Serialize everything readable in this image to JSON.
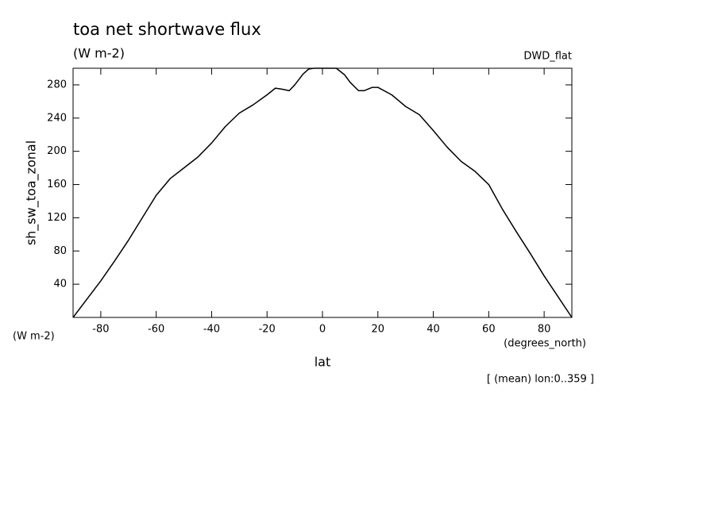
{
  "chart_data": {
    "type": "line",
    "title": "toa net shortwave flux",
    "subtitle": "(W m-2)",
    "dataset_label": "DWD_flat",
    "y_label": "sh_sw_toa_zonal",
    "y_units": "(W m-2)",
    "x_units": "(degrees_north)",
    "x_label": "lat",
    "annotation": "[ (mean) lon:0..359 ]",
    "color": "#000000",
    "x": [
      -90,
      -85,
      -80,
      -75,
      -70,
      -65,
      -60,
      -55,
      -50,
      -45,
      -40,
      -35,
      -30,
      -25,
      -20,
      -17,
      -15,
      -12,
      -10,
      -7,
      -5,
      -3,
      0,
      3,
      5,
      8,
      10,
      13,
      15,
      18,
      20,
      25,
      30,
      35,
      40,
      45,
      50,
      55,
      60,
      65,
      70,
      75,
      80,
      85,
      90
    ],
    "values": [
      0,
      22,
      44,
      68,
      93,
      120,
      147,
      167,
      180,
      193,
      210,
      230,
      246,
      256,
      268,
      276,
      275,
      273,
      280,
      293,
      299,
      300,
      300,
      300,
      300,
      292,
      283,
      273,
      273,
      277,
      277,
      268,
      254,
      244,
      225,
      205,
      188,
      176,
      160,
      130,
      103,
      77,
      50,
      25,
      0
    ],
    "xlim": [
      -90,
      90
    ],
    "xticks": [
      -80,
      -60,
      -40,
      -20,
      0,
      20,
      40,
      60,
      80
    ],
    "ylim": [
      0,
      300
    ],
    "yticks": [
      40,
      80,
      120,
      160,
      200,
      240,
      280
    ]
  }
}
